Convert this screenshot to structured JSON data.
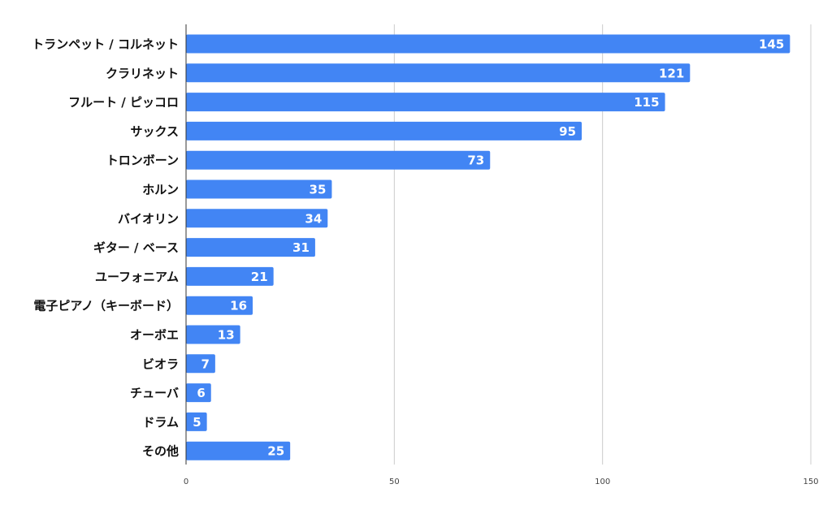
{
  "chart_data": {
    "type": "bar",
    "orientation": "horizontal",
    "categories": [
      "トランペット / コルネット",
      "クラリネット",
      "フルート / ピッコロ",
      "サックス",
      "トロンボーン",
      "ホルン",
      "バイオリン",
      "ギター / ベース",
      "ユーフォニアム",
      "電子ピアノ（キーボード）",
      "オーボエ",
      "ビオラ",
      "チューバ",
      "ドラム",
      "その他"
    ],
    "values": [
      145,
      121,
      115,
      95,
      73,
      35,
      34,
      31,
      21,
      16,
      13,
      7,
      6,
      5,
      25
    ],
    "xlim": [
      0,
      150
    ],
    "xticks": [
      "0",
      "50",
      "100",
      "150"
    ],
    "grid": true,
    "legend": "none",
    "data_labels": true,
    "title": "",
    "xlabel": "",
    "ylabel": "",
    "colors": {
      "bar": "#4285F4",
      "grid": "#cccccc",
      "axis": "#333333"
    }
  }
}
